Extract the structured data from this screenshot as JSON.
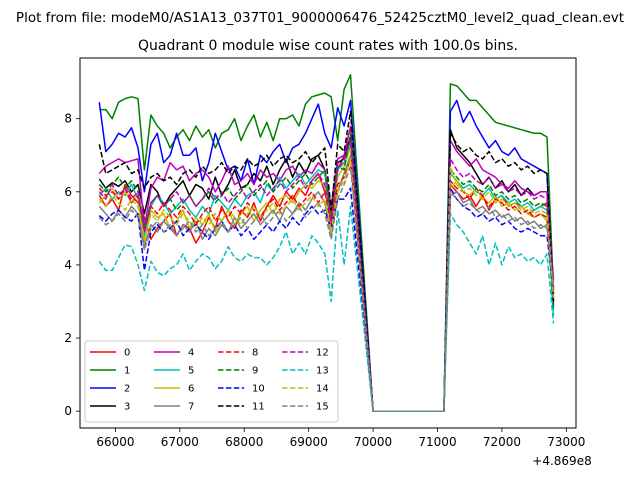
{
  "chart_data": {
    "type": "line",
    "suptitle": "Plot from file: modeM0/AS1A13_037T01_9000006476_52425cztM0_level2_quad_clean.evt",
    "title": "Quadrant 0 module wise count rates with 100.0s bins.",
    "xlabel": "",
    "ylabel": "",
    "x_offset_label": "+4.869e8",
    "xlim": [
      65450,
      73150
    ],
    "ylim": [
      -0.46,
      9.66
    ],
    "xticks": [
      66000,
      67000,
      68000,
      69000,
      70000,
      71000,
      72000,
      73000
    ],
    "xtick_labels": [
      "66000",
      "67000",
      "68000",
      "69000",
      "70000",
      "71000",
      "72000",
      "73000"
    ],
    "yticks": [
      0,
      2,
      4,
      6,
      8
    ],
    "ytick_labels": [
      "0",
      "2",
      "4",
      "6",
      "8"
    ],
    "legend_location": "lower-left",
    "legend_columns": 4,
    "x_first_segment": {
      "start": 65750,
      "step": 100,
      "count": 40
    },
    "x_second_segment": {
      "start": 71200,
      "step": 100,
      "count": 17
    },
    "gap_x": [
      70000,
      70100,
      70200,
      70300,
      70400,
      70500,
      70600,
      70700,
      70800,
      70900,
      71000,
      71100
    ],
    "series": [
      {
        "name": "0",
        "color": "#ff0000",
        "dash": "solid",
        "spike": 7.0,
        "seg1": [
          5.9,
          5.6,
          5.8,
          5.5,
          6.2,
          5.9,
          5.7,
          5.3,
          4.7,
          5.0,
          5.2,
          5.4,
          4.8,
          5.1,
          5.0,
          4.6,
          4.9,
          5.3,
          5.0,
          5.6,
          5.2,
          5.0,
          5.5,
          5.3,
          5.7,
          5.2,
          5.6,
          5.9,
          5.6,
          6.0,
          5.8,
          6.1,
          5.9,
          6.3,
          6.5,
          6.0,
          5.2,
          6.6,
          6.9,
          7.5
        ],
        "seg2": [
          6.2,
          6.0,
          5.8,
          5.9,
          5.6,
          5.9,
          5.5,
          5.8,
          5.9,
          5.6,
          5.7,
          5.6,
          5.4,
          5.5,
          5.6,
          5.7,
          3.6
        ]
      },
      {
        "name": "1",
        "color": "#008000",
        "dash": "solid",
        "spike": 8.8,
        "seg1": [
          8.25,
          8.25,
          8.0,
          8.45,
          8.55,
          8.6,
          8.55,
          6.6,
          8.1,
          7.8,
          7.6,
          7.2,
          7.5,
          7.7,
          7.4,
          7.8,
          7.5,
          7.7,
          7.2,
          7.6,
          7.7,
          8.0,
          7.4,
          7.8,
          8.1,
          7.5,
          7.9,
          7.4,
          8.0,
          8.0,
          8.1,
          7.8,
          8.4,
          8.6,
          8.65,
          8.7,
          8.6,
          7.4,
          9.0,
          9.2
        ],
        "seg2": [
          8.95,
          8.9,
          8.7,
          8.5,
          8.5,
          8.3,
          8.1,
          7.9,
          7.85,
          7.8,
          7.75,
          7.7,
          7.65,
          7.6,
          7.6,
          7.5,
          3.3
        ]
      },
      {
        "name": "2",
        "color": "#0000ff",
        "dash": "solid",
        "spike": 7.8,
        "seg1": [
          8.45,
          7.1,
          7.3,
          7.6,
          7.5,
          7.75,
          7.2,
          6.0,
          7.3,
          7.6,
          6.8,
          7.0,
          7.6,
          7.0,
          7.0,
          7.2,
          6.3,
          6.8,
          7.6,
          7.1,
          6.6,
          6.7,
          6.3,
          6.9,
          6.2,
          7.0,
          6.8,
          7.1,
          7.3,
          6.8,
          7.2,
          7.3,
          7.6,
          8.0,
          8.4,
          7.6,
          7.2,
          8.3,
          8.6,
          8.5
        ],
        "seg2": [
          8.2,
          8.5,
          7.9,
          8.2,
          7.8,
          7.5,
          7.2,
          7.4,
          7.1,
          7.0,
          7.2,
          6.9,
          6.8,
          6.7,
          6.6,
          6.5,
          2.9
        ]
      },
      {
        "name": "3",
        "color": "#000000",
        "dash": "solid",
        "spike": 6.9,
        "seg1": [
          6.35,
          6.1,
          6.25,
          6.15,
          6.3,
          6.0,
          6.2,
          5.4,
          6.2,
          6.0,
          5.6,
          5.9,
          6.1,
          6.3,
          5.9,
          6.2,
          6.1,
          5.8,
          6.4,
          5.9,
          6.2,
          6.6,
          6.1,
          6.2,
          6.5,
          6.3,
          6.7,
          6.2,
          6.6,
          6.9,
          6.4,
          6.8,
          6.5,
          6.9,
          7.0,
          6.6,
          5.2,
          6.8,
          7.0,
          7.5
        ],
        "seg2": [
          7.7,
          7.2,
          7.0,
          6.8,
          6.5,
          6.2,
          6.4,
          6.1,
          6.3,
          6.0,
          6.2,
          5.9,
          6.1,
          5.9,
          6.0,
          6.0,
          3.2
        ]
      },
      {
        "name": "4",
        "color": "#bf00bf",
        "dash": "solid",
        "spike": 7.0,
        "seg1": [
          6.5,
          6.7,
          6.8,
          6.9,
          6.8,
          6.85,
          6.9,
          5.0,
          6.1,
          6.4,
          6.3,
          6.8,
          6.6,
          6.7,
          6.3,
          6.5,
          6.6,
          6.4,
          6.0,
          6.3,
          6.7,
          6.2,
          6.3,
          6.5,
          6.2,
          6.6,
          6.4,
          6.5,
          6.3,
          6.6,
          6.7,
          6.4,
          6.6,
          6.5,
          6.8,
          6.6,
          5.6,
          6.9,
          7.1,
          7.8
        ],
        "seg2": [
          7.4,
          7.1,
          6.9,
          6.7,
          6.9,
          6.6,
          6.5,
          6.4,
          6.2,
          6.1,
          6.3,
          6.1,
          6.0,
          5.9,
          6.0,
          6.0,
          3.4
        ]
      },
      {
        "name": "5",
        "color": "#00bfbf",
        "dash": "solid",
        "spike": 6.8,
        "seg1": [
          5.9,
          6.1,
          5.8,
          6.0,
          5.9,
          6.2,
          5.8,
          4.8,
          5.6,
          5.9,
          5.7,
          5.4,
          5.6,
          5.8,
          5.5,
          5.3,
          5.6,
          5.4,
          5.9,
          5.7,
          5.5,
          5.8,
          5.6,
          5.9,
          6.0,
          5.7,
          6.2,
          6.0,
          6.4,
          6.1,
          6.3,
          6.5,
          6.2,
          6.4,
          6.6,
          6.5,
          5.0,
          6.6,
          6.8,
          7.3
        ],
        "seg2": [
          6.5,
          6.3,
          6.1,
          6.2,
          6.0,
          5.9,
          6.1,
          5.8,
          5.9,
          5.7,
          5.8,
          5.6,
          5.7,
          5.5,
          5.6,
          5.5,
          2.6
        ]
      },
      {
        "name": "6",
        "color": "#bfbf00",
        "dash": "solid",
        "spike": 6.7,
        "seg1": [
          5.7,
          5.9,
          6.1,
          5.8,
          6.0,
          5.7,
          5.9,
          4.6,
          5.5,
          5.3,
          5.4,
          5.0,
          5.2,
          5.5,
          5.0,
          5.3,
          5.1,
          5.4,
          4.9,
          5.2,
          5.5,
          5.1,
          5.4,
          5.6,
          5.2,
          5.5,
          5.7,
          5.4,
          5.8,
          5.9,
          5.7,
          6.0,
          6.2,
          6.1,
          6.3,
          6.2,
          4.9,
          6.4,
          6.6,
          7.2
        ],
        "seg2": [
          6.1,
          6.3,
          6.0,
          5.9,
          6.1,
          5.8,
          5.7,
          5.9,
          5.6,
          5.7,
          5.5,
          5.6,
          5.4,
          5.3,
          5.4,
          5.2,
          3.0
        ]
      },
      {
        "name": "7",
        "color": "#808080",
        "dash": "solid",
        "spike": 6.5,
        "seg1": [
          5.6,
          5.4,
          5.2,
          5.5,
          5.3,
          5.6,
          5.4,
          4.5,
          5.1,
          4.9,
          5.2,
          5.0,
          4.8,
          5.1,
          4.9,
          5.2,
          4.7,
          5.0,
          4.8,
          5.1,
          4.9,
          5.3,
          5.0,
          5.2,
          5.4,
          5.1,
          5.3,
          5.5,
          5.2,
          5.6,
          5.4,
          5.7,
          5.5,
          5.8,
          6.0,
          5.7,
          4.8,
          6.0,
          6.3,
          7.0
        ],
        "seg2": [
          5.9,
          6.0,
          5.7,
          5.8,
          5.5,
          5.6,
          5.4,
          5.5,
          5.3,
          5.4,
          5.2,
          5.3,
          5.1,
          5.2,
          5.0,
          5.1,
          3.4
        ]
      },
      {
        "name": "8",
        "color": "#ff0000",
        "dash": "dashed",
        "spike": 6.4,
        "seg1": [
          6.1,
          5.9,
          6.0,
          5.8,
          6.1,
          5.7,
          5.9,
          4.9,
          5.6,
          5.4,
          5.7,
          5.5,
          5.3,
          5.6,
          5.4,
          5.1,
          5.4,
          5.6,
          5.2,
          5.5,
          5.3,
          5.6,
          5.4,
          5.7,
          5.5,
          5.3,
          5.6,
          5.8,
          5.5,
          5.7,
          5.9,
          5.6,
          5.8,
          6.0,
          5.7,
          6.0,
          5.1,
          6.2,
          6.4,
          6.9
        ],
        "seg2": [
          6.3,
          6.1,
          6.0,
          5.8,
          6.1,
          5.9,
          5.6,
          5.8,
          5.7,
          5.5,
          5.6,
          5.4,
          5.5,
          5.3,
          5.4,
          5.3,
          3.0
        ]
      },
      {
        "name": "9",
        "color": "#008000",
        "dash": "dashed",
        "spike": 6.6,
        "seg1": [
          6.2,
          6.0,
          6.2,
          6.4,
          6.1,
          6.3,
          6.0,
          5.0,
          5.7,
          5.9,
          5.6,
          5.8,
          5.5,
          5.7,
          5.9,
          5.6,
          5.8,
          6.0,
          5.7,
          5.9,
          6.1,
          5.8,
          6.0,
          6.2,
          5.9,
          6.1,
          6.3,
          6.0,
          6.2,
          6.4,
          6.1,
          6.3,
          6.5,
          6.2,
          6.4,
          6.6,
          5.3,
          6.7,
          7.0,
          7.6
        ],
        "seg2": [
          6.6,
          6.4,
          6.2,
          6.3,
          6.1,
          6.0,
          6.2,
          5.9,
          6.0,
          5.8,
          5.9,
          5.7,
          5.8,
          5.6,
          5.7,
          5.6,
          2.8
        ]
      },
      {
        "name": "10",
        "color": "#0000ff",
        "dash": "dashed",
        "spike": 5.8,
        "seg1": [
          5.35,
          5.2,
          5.4,
          5.5,
          5.3,
          5.2,
          5.4,
          3.85,
          4.9,
          5.1,
          4.9,
          5.0,
          5.2,
          4.8,
          5.0,
          5.1,
          4.9,
          4.7,
          5.0,
          5.2,
          4.9,
          5.1,
          4.8,
          5.0,
          4.7,
          4.9,
          5.1,
          4.9,
          5.2,
          5.0,
          5.3,
          5.1,
          5.4,
          5.6,
          5.4,
          5.5,
          5.0,
          5.8,
          5.7,
          6.1
        ],
        "seg2": [
          6.1,
          5.8,
          5.6,
          5.5,
          5.3,
          5.4,
          5.2,
          5.3,
          5.1,
          5.2,
          5.0,
          4.9,
          5.0,
          4.9,
          4.8,
          4.8,
          3.3
        ]
      },
      {
        "name": "11",
        "color": "#000000",
        "dash": "dashed",
        "spike": 7.1,
        "seg1": [
          7.3,
          6.5,
          6.6,
          6.7,
          6.8,
          6.5,
          6.6,
          6.1,
          6.4,
          6.5,
          6.3,
          6.4,
          6.2,
          6.5,
          6.6,
          6.4,
          6.7,
          6.5,
          6.6,
          6.8,
          6.5,
          6.7,
          6.6,
          6.9,
          6.7,
          6.8,
          7.0,
          6.7,
          6.9,
          7.0,
          6.8,
          6.9,
          7.1,
          6.8,
          7.0,
          7.2,
          5.5,
          7.3,
          7.8,
          8.2
        ],
        "seg2": [
          7.6,
          7.3,
          7.1,
          7.2,
          7.0,
          6.9,
          7.1,
          6.8,
          6.9,
          6.7,
          6.8,
          6.6,
          6.7,
          6.5,
          6.6,
          6.5,
          3.0
        ]
      },
      {
        "name": "12",
        "color": "#bf00bf",
        "dash": "dashed",
        "spike": 6.9,
        "seg1": [
          6.0,
          5.8,
          6.2,
          5.9,
          6.1,
          5.8,
          6.0,
          4.9,
          5.7,
          5.9,
          5.6,
          5.8,
          6.0,
          5.7,
          5.9,
          5.6,
          5.8,
          6.1,
          5.8,
          6.0,
          5.7,
          5.9,
          6.1,
          5.8,
          6.0,
          6.2,
          5.9,
          6.1,
          6.3,
          6.0,
          6.2,
          6.4,
          6.1,
          6.3,
          6.5,
          6.2,
          5.2,
          6.6,
          6.9,
          7.4
        ],
        "seg2": [
          6.9,
          6.6,
          6.4,
          6.5,
          6.3,
          6.2,
          6.4,
          6.1,
          6.2,
          6.0,
          6.1,
          5.9,
          6.0,
          5.8,
          5.9,
          5.8,
          3.1
        ]
      },
      {
        "name": "13",
        "color": "#00bfbf",
        "dash": "dashed",
        "spike": 4.0,
        "seg1": [
          4.1,
          3.85,
          3.85,
          4.2,
          4.55,
          4.5,
          4.0,
          3.3,
          4.1,
          3.8,
          3.7,
          3.9,
          4.0,
          4.3,
          3.85,
          4.1,
          4.3,
          4.2,
          3.9,
          4.1,
          4.5,
          4.2,
          4.1,
          4.3,
          4.2,
          4.2,
          4.0,
          4.2,
          4.5,
          4.9,
          4.3,
          4.6,
          4.3,
          4.8,
          4.6,
          4.3,
          3.0,
          5.5,
          5.0,
          5.6
        ],
        "seg2": [
          5.4,
          5.1,
          4.9,
          4.6,
          4.3,
          4.8,
          4.0,
          4.6,
          4.0,
          4.5,
          4.2,
          4.3,
          4.1,
          4.2,
          4.0,
          4.3,
          2.4
        ]
      },
      {
        "name": "14",
        "color": "#bfbf00",
        "dash": "dashed",
        "spike": 6.3,
        "seg1": [
          5.8,
          5.6,
          5.9,
          5.7,
          5.5,
          5.8,
          5.6,
          4.7,
          5.4,
          5.2,
          5.5,
          5.3,
          5.1,
          5.4,
          5.2,
          5.0,
          5.3,
          5.1,
          5.4,
          5.2,
          5.5,
          5.3,
          5.1,
          5.4,
          5.6,
          5.3,
          5.5,
          5.7,
          5.4,
          5.6,
          5.8,
          5.5,
          5.7,
          5.9,
          5.6,
          5.8,
          4.9,
          6.0,
          6.3,
          6.9
        ],
        "seg2": [
          6.7,
          6.2,
          6.0,
          6.1,
          5.9,
          5.8,
          6.0,
          5.7,
          5.8,
          5.6,
          5.7,
          5.5,
          5.6,
          5.4,
          5.5,
          5.4,
          3.1
        ]
      },
      {
        "name": "15",
        "color": "#808080",
        "dash": "dashed",
        "spike": 6.2,
        "seg1": [
          5.3,
          5.1,
          5.2,
          5.4,
          5.2,
          5.5,
          5.3,
          4.4,
          5.0,
          5.2,
          4.9,
          5.1,
          4.8,
          5.0,
          5.2,
          4.9,
          5.1,
          4.8,
          5.0,
          5.2,
          4.9,
          5.1,
          5.3,
          5.0,
          5.2,
          5.4,
          5.1,
          5.3,
          5.5,
          5.2,
          5.4,
          5.6,
          5.3,
          5.5,
          5.7,
          5.4,
          4.7,
          5.8,
          6.1,
          6.7
        ],
        "seg2": [
          6.0,
          5.8,
          5.6,
          5.7,
          5.5,
          5.4,
          5.6,
          5.3,
          5.4,
          5.2,
          5.3,
          5.1,
          5.2,
          5.0,
          5.1,
          5.0,
          3.4
        ]
      }
    ]
  }
}
